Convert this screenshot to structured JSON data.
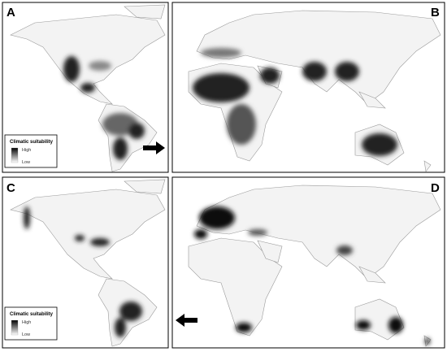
{
  "panels": [
    {
      "label": "A",
      "legend": {
        "title": "Climatic suitability",
        "high": "High",
        "low": "Low"
      }
    },
    {
      "label": "B"
    },
    {
      "label": "C",
      "legend": {
        "title": "Climatic suitability",
        "high": "High",
        "low": "Low"
      }
    },
    {
      "label": "D"
    }
  ]
}
